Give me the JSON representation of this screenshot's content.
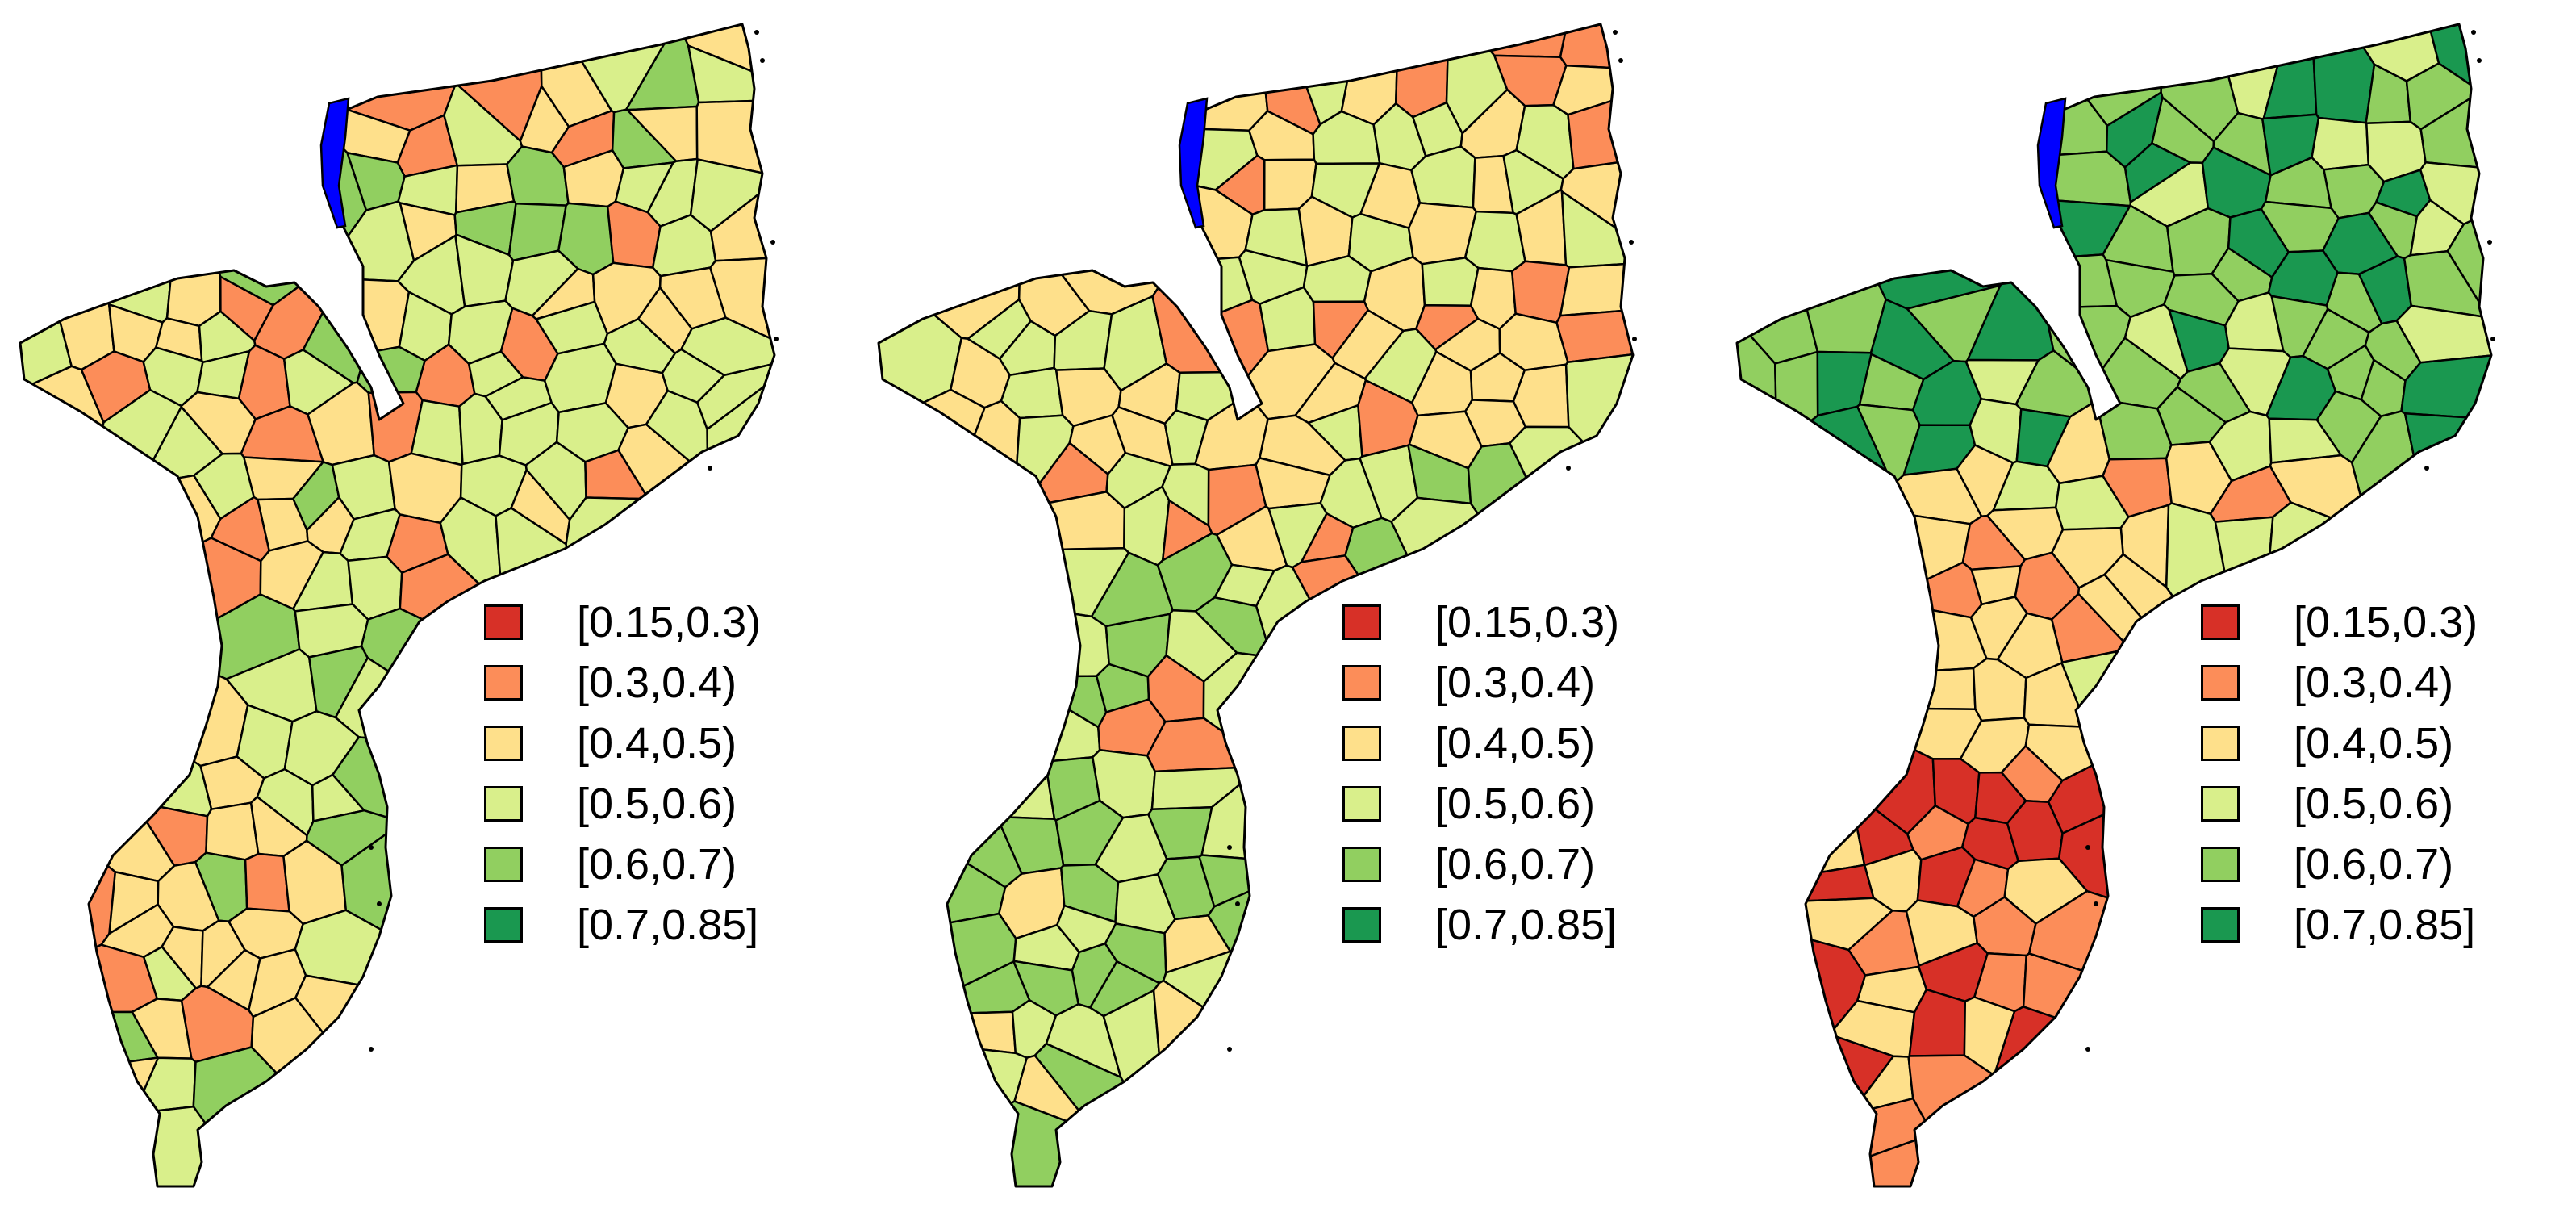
{
  "colors": {
    "lake": "#0000ff",
    "border": "#000000",
    "c1": "#d73027",
    "c2": "#fc8d59",
    "c3": "#fee08b",
    "c4": "#d9ef8b",
    "c5": "#91cf60",
    "c6": "#1a9850"
  },
  "maps": [
    {
      "legend": [
        {
          "label": "[0.15,0.3)",
          "color": "#d73027"
        },
        {
          "label": "[0.3,0.4)",
          "color": "#fc8d59"
        },
        {
          "label": "[0.4,0.5)",
          "color": "#fee08b"
        },
        {
          "label": "[0.5,0.6)",
          "color": "#d9ef8b"
        },
        {
          "label": "[0.6,0.7)",
          "color": "#91cf60"
        },
        {
          "label": "[0.7,0.85]",
          "color": "#1a9850"
        }
      ]
    },
    {
      "legend": [
        {
          "label": "[0.15,0.3)",
          "color": "#d73027"
        },
        {
          "label": "[0.3,0.4)",
          "color": "#fc8d59"
        },
        {
          "label": "[0.4,0.5)",
          "color": "#fee08b"
        },
        {
          "label": "[0.5,0.6)",
          "color": "#d9ef8b"
        },
        {
          "label": "[0.6,0.7)",
          "color": "#91cf60"
        },
        {
          "label": "[0.7,0.85]",
          "color": "#1a9850"
        }
      ]
    },
    {
      "legend": [
        {
          "label": "[0.15,0.3)",
          "color": "#d73027"
        },
        {
          "label": "[0.3,0.4)",
          "color": "#fc8d59"
        },
        {
          "label": "[0.4,0.5)",
          "color": "#fee08b"
        },
        {
          "label": "[0.5,0.6)",
          "color": "#d9ef8b"
        },
        {
          "label": "[0.6,0.7)",
          "color": "#91cf60"
        },
        {
          "label": "[0.7,0.85]",
          "color": "#1a9850"
        }
      ]
    }
  ]
}
